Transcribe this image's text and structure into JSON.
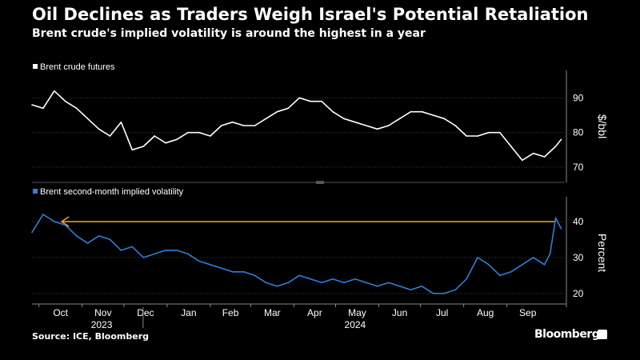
{
  "title": "Oil Declines as Traders Weigh Israel's Potential Retaliation",
  "subtitle": "Brent crude's implied volatility is around the highest in a year",
  "source": "Source: ICE, Bloomberg",
  "brand": "Bloomberg",
  "chart_data": [
    {
      "type": "line",
      "legend": "Brent crude futures",
      "ylabel": "$/bbl",
      "ylim": [
        67,
        97
      ],
      "yticks": [
        70,
        80,
        90
      ],
      "color": "#ffffff",
      "x": [
        "2023-09-26",
        "2023-10-04",
        "2023-10-12",
        "2023-10-20",
        "2023-10-28",
        "2023-11-05",
        "2023-11-13",
        "2023-11-21",
        "2023-11-29",
        "2023-12-07",
        "2023-12-15",
        "2023-12-23",
        "2023-12-31",
        "2024-01-08",
        "2024-01-16",
        "2024-01-24",
        "2024-02-01",
        "2024-02-09",
        "2024-02-17",
        "2024-02-25",
        "2024-03-04",
        "2024-03-12",
        "2024-03-20",
        "2024-03-28",
        "2024-04-05",
        "2024-04-13",
        "2024-04-21",
        "2024-04-29",
        "2024-05-07",
        "2024-05-15",
        "2024-05-23",
        "2024-05-31",
        "2024-06-08",
        "2024-06-16",
        "2024-06-24",
        "2024-07-02",
        "2024-07-10",
        "2024-07-18",
        "2024-07-26",
        "2024-08-03",
        "2024-08-11",
        "2024-08-19",
        "2024-08-27",
        "2024-09-04",
        "2024-09-12",
        "2024-09-20",
        "2024-09-28",
        "2024-10-06",
        "2024-10-10"
      ],
      "values": [
        88,
        87,
        92,
        89,
        87,
        84,
        81,
        79,
        83,
        75,
        76,
        79,
        77,
        78,
        80,
        80,
        79,
        82,
        83,
        82,
        82,
        84,
        86,
        87,
        90,
        89,
        89,
        86,
        84,
        83,
        82,
        81,
        82,
        84,
        86,
        86,
        85,
        84,
        82,
        79,
        79,
        80,
        80,
        76,
        72,
        74,
        73,
        76,
        78
      ]
    },
    {
      "type": "line",
      "legend": "Brent second-month implied volatility",
      "ylabel": "Percent",
      "ylim": [
        17.5,
        46
      ],
      "yticks": [
        20,
        30,
        40
      ],
      "color": "#2f7fd8",
      "reference_level": 40,
      "reference_color": "#f5a623",
      "x": [
        "2023-09-26",
        "2023-10-04",
        "2023-10-12",
        "2023-10-20",
        "2023-10-28",
        "2023-11-05",
        "2023-11-13",
        "2023-11-21",
        "2023-11-29",
        "2023-12-07",
        "2023-12-15",
        "2023-12-23",
        "2023-12-31",
        "2024-01-08",
        "2024-01-16",
        "2024-01-24",
        "2024-02-01",
        "2024-02-09",
        "2024-02-17",
        "2024-02-25",
        "2024-03-04",
        "2024-03-12",
        "2024-03-20",
        "2024-03-28",
        "2024-04-05",
        "2024-04-13",
        "2024-04-21",
        "2024-04-29",
        "2024-05-07",
        "2024-05-15",
        "2024-05-23",
        "2024-05-31",
        "2024-06-08",
        "2024-06-16",
        "2024-06-24",
        "2024-07-02",
        "2024-07-10",
        "2024-07-18",
        "2024-07-26",
        "2024-08-03",
        "2024-08-11",
        "2024-08-19",
        "2024-08-27",
        "2024-09-04",
        "2024-09-12",
        "2024-09-20",
        "2024-09-28",
        "2024-10-02",
        "2024-10-06",
        "2024-10-10"
      ],
      "values": [
        37,
        42,
        40,
        39,
        36,
        34,
        36,
        35,
        32,
        33,
        30,
        31,
        32,
        32,
        31,
        29,
        28,
        27,
        26,
        26,
        25,
        23,
        22,
        23,
        25,
        24,
        23,
        24,
        23,
        24,
        23,
        22,
        23,
        22,
        21,
        22,
        20,
        20,
        21,
        24,
        30,
        28,
        25,
        26,
        28,
        30,
        28,
        31,
        41,
        38
      ]
    }
  ],
  "x_axis": {
    "months": [
      {
        "label": "Oct",
        "date": "2023-10-01"
      },
      {
        "label": "Nov",
        "date": "2023-11-01"
      },
      {
        "label": "Dec",
        "date": "2023-12-01"
      },
      {
        "label": "Jan",
        "date": "2024-01-01"
      },
      {
        "label": "Feb",
        "date": "2024-02-01"
      },
      {
        "label": "Mar",
        "date": "2024-03-01"
      },
      {
        "label": "Apr",
        "date": "2024-04-01"
      },
      {
        "label": "May",
        "date": "2024-05-01"
      },
      {
        "label": "Jun",
        "date": "2024-06-01"
      },
      {
        "label": "Jul",
        "date": "2024-07-01"
      },
      {
        "label": "Aug",
        "date": "2024-08-01"
      },
      {
        "label": "Sep",
        "date": "2024-09-01"
      }
    ],
    "years": [
      {
        "label": "2023",
        "date": "2023-11-15"
      },
      {
        "label": "2024",
        "date": "2024-05-15"
      }
    ],
    "year_boundary": "2024-01-01",
    "start": "2023-09-26",
    "end": "2024-10-12"
  },
  "colors": {
    "background": "#000000",
    "text": "#ffffff",
    "grid": "#3a3a3a",
    "axis": "#8a8a8a"
  }
}
